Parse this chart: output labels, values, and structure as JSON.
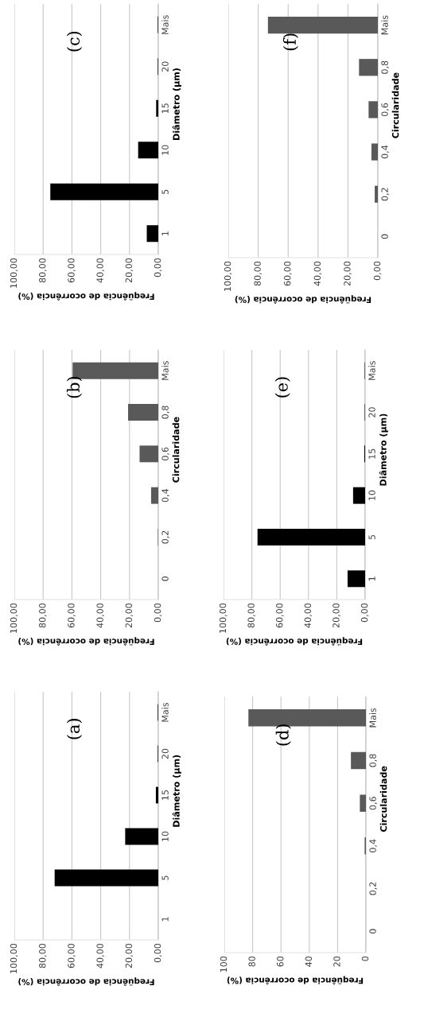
{
  "chart_data": [
    {
      "type": "bar",
      "orientation": "horizontal",
      "title": "(a)",
      "xlabel": "Freqüência de ocorrência (%)",
      "ylabel": "Diâmetro (µm)",
      "categories": [
        "Mais",
        "20",
        "15",
        "10",
        "5",
        "1"
      ],
      "values": [
        0.4,
        0.4,
        1.7,
        23,
        72,
        0
      ],
      "color": "#000000",
      "xlim": [
        100,
        0
      ],
      "xticks": [
        {
          "value": 100,
          "label": "100,00"
        },
        {
          "value": 80,
          "label": "80,00"
        },
        {
          "value": 60,
          "label": "60,00"
        },
        {
          "value": 40,
          "label": "40,00"
        },
        {
          "value": 20,
          "label": "20,00"
        },
        {
          "value": 0,
          "label": "0,00"
        }
      ],
      "grid": "x"
    },
    {
      "type": "bar",
      "orientation": "horizontal",
      "title": "(b)",
      "xlabel": "Freqüência de ocorrência (%)",
      "ylabel": "Circularidade",
      "categories": [
        "Mais",
        "0,8",
        "0,6",
        "0,4",
        "0,2",
        "0"
      ],
      "values": [
        59.5,
        21,
        13,
        5,
        0.3,
        0
      ],
      "color": "#595959",
      "xlim": [
        100,
        0
      ],
      "xticks": [
        {
          "value": 100,
          "label": "100,00"
        },
        {
          "value": 80,
          "label": "80,00"
        },
        {
          "value": 60,
          "label": "60,00"
        },
        {
          "value": 40,
          "label": "40,00"
        },
        {
          "value": 20,
          "label": "20,00"
        },
        {
          "value": 0,
          "label": "0,00"
        }
      ],
      "grid": "x"
    },
    {
      "type": "bar",
      "orientation": "horizontal",
      "title": "(c)",
      "xlabel": "Freqüência de ocorrência (%)",
      "ylabel": "Diâmetro (µm)",
      "categories": [
        "Mais",
        "20",
        "15",
        "10",
        "5",
        "1"
      ],
      "values": [
        0.4,
        0.4,
        1.5,
        14,
        75,
        8
      ],
      "color": "#000000",
      "xlim": [
        100,
        0
      ],
      "xticks": [
        {
          "value": 100,
          "label": "100,00"
        },
        {
          "value": 80,
          "label": "80,00"
        },
        {
          "value": 60,
          "label": "60,00"
        },
        {
          "value": 40,
          "label": "40,00"
        },
        {
          "value": 20,
          "label": "20,00"
        },
        {
          "value": 0,
          "label": "0,00"
        }
      ],
      "grid": "x"
    },
    {
      "type": "bar",
      "orientation": "horizontal",
      "title": "(d)",
      "xlabel": "Freqüência de ocorrência (%)",
      "ylabel": "Circularidade",
      "categories": [
        "Mais",
        "0,8",
        "0,6",
        "0,4",
        "0,2",
        "0"
      ],
      "values": [
        83,
        10.6,
        4.3,
        0.9,
        0,
        0
      ],
      "color": "#595959",
      "xlim": [
        100,
        0
      ],
      "xticks": [
        100,
        80,
        60,
        40,
        20,
        0
      ],
      "grid": "x"
    },
    {
      "type": "bar",
      "orientation": "horizontal",
      "title": "(e)",
      "xlabel": "Freqüência de ocorrência (%)",
      "ylabel": "Diâmetro (µm)",
      "categories": [
        "Mais",
        "20",
        "15",
        "10",
        "5",
        "1"
      ],
      "values": [
        0.3,
        0.3,
        0.6,
        8.5,
        76,
        12.4
      ],
      "color": "#000000",
      "xlim": [
        100,
        0
      ],
      "xticks": [
        {
          "value": 100,
          "label": "100,00"
        },
        {
          "value": 80,
          "label": "80,00"
        },
        {
          "value": 60,
          "label": "60,00"
        },
        {
          "value": 40,
          "label": "40,00"
        },
        {
          "value": 20,
          "label": "20,00"
        },
        {
          "value": 0,
          "label": "0,00"
        }
      ],
      "grid": "x"
    },
    {
      "type": "bar",
      "orientation": "horizontal",
      "title": "(f)",
      "xlabel": "Freqüência de ocorrência (%)",
      "ylabel": "Circularidade",
      "categories": [
        "Mais",
        "0,8",
        "0,6",
        "0,4",
        "0,2",
        "0"
      ],
      "values": [
        73.5,
        12.6,
        6.2,
        4.3,
        2.1,
        0
      ],
      "color": "#595959",
      "xlim": [
        100,
        0
      ],
      "xticks": [
        {
          "value": 100,
          "label": "100,00"
        },
        {
          "value": 80,
          "label": "80,00"
        },
        {
          "value": 60,
          "label": "60,00"
        },
        {
          "value": 40,
          "label": "40,00"
        },
        {
          "value": 20,
          "label": "20,00"
        },
        {
          "value": 0,
          "label": "0,00"
        }
      ],
      "grid": "x"
    }
  ]
}
